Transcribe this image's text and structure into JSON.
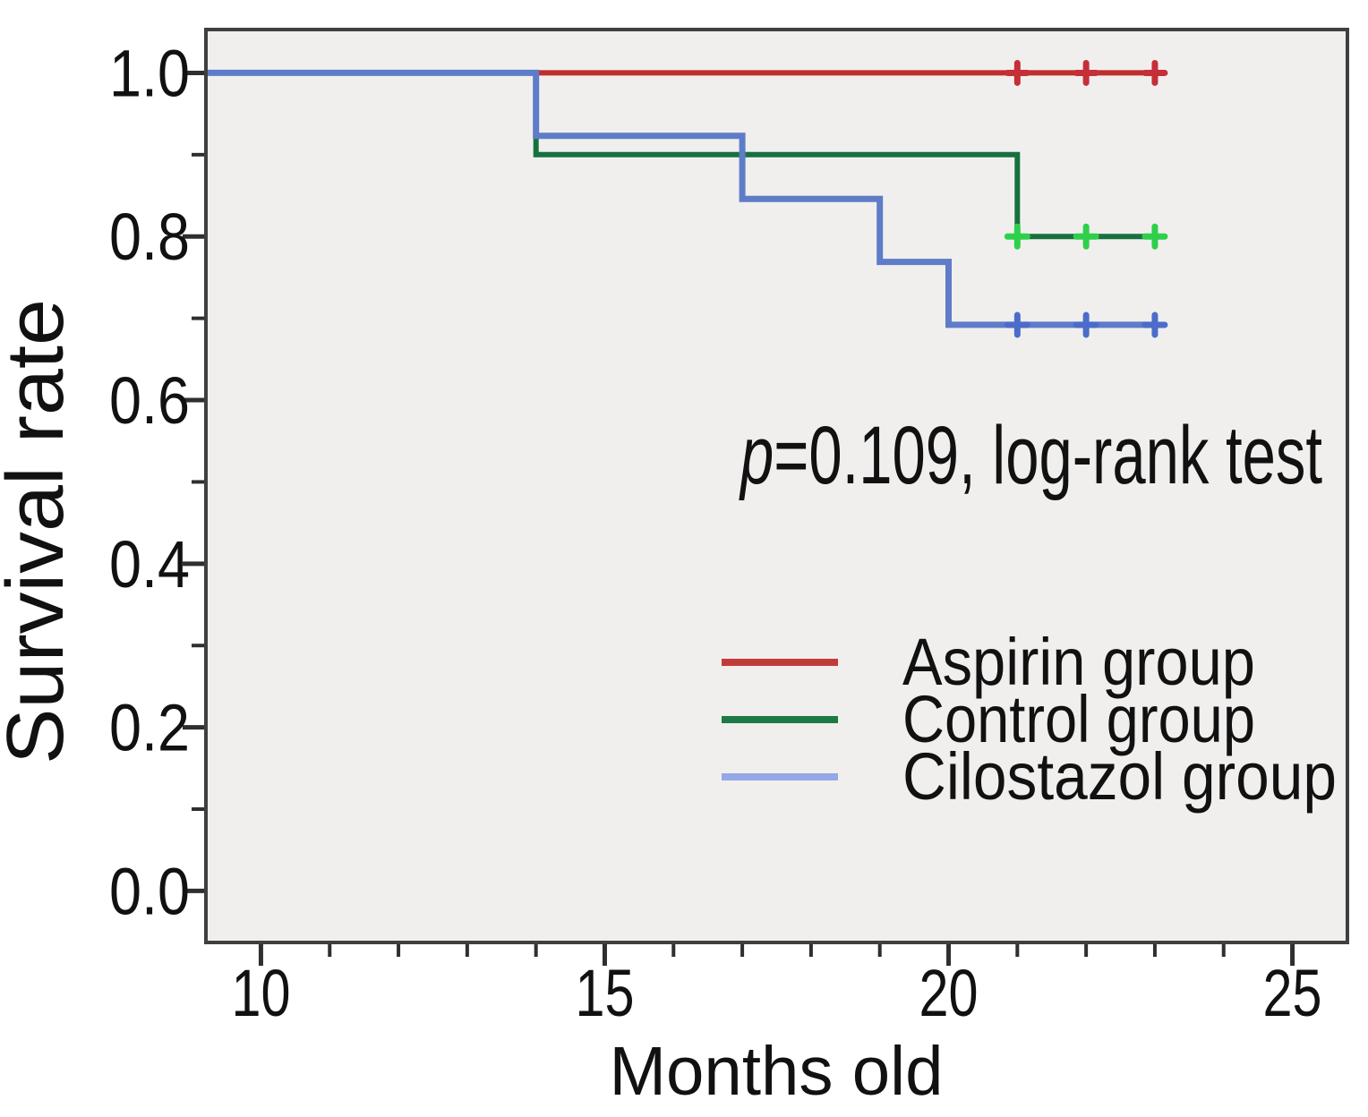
{
  "chart_data": {
    "type": "line",
    "subtype": "kaplan-meier-step",
    "title": "",
    "xlabel": "Months old",
    "ylabel": "Survival rate",
    "xlim": [
      9.2,
      25.8
    ],
    "ylim": [
      -0.063,
      1.053
    ],
    "grid": false,
    "plot_bg": "#f0efee",
    "frame_color": "#3f3f3f",
    "tick_color": "#2f2f2f",
    "x_major_ticks": [
      10,
      15,
      20,
      25
    ],
    "x_tick_labels": [
      "10",
      "15",
      "20",
      "25"
    ],
    "x_minor_ticks": [
      11,
      12,
      13,
      14,
      16,
      17,
      18,
      19,
      21,
      22,
      23,
      24
    ],
    "y_major_ticks": [
      0.0,
      0.2,
      0.4,
      0.6,
      0.8,
      1.0
    ],
    "y_tick_labels": [
      "0.0",
      "0.2",
      "0.4",
      "0.6",
      "0.8",
      "1.0"
    ],
    "y_minor_ticks": [
      0.1,
      0.3,
      0.5,
      0.7,
      0.9
    ],
    "annotation": {
      "italic": "p",
      "text": "=0.109, log-rank test"
    },
    "legend_position": "lower right",
    "series": [
      {
        "name": "Aspirin group",
        "color": "#bf2d2e",
        "marker_color": "#c52f38",
        "legend_color": "#c23b3b",
        "line_width": 6,
        "points": [
          [
            9.2,
            1.0
          ],
          [
            23,
            1.0
          ]
        ],
        "censor_marks": [
          [
            21,
            1.0
          ],
          [
            22,
            1.0
          ],
          [
            23,
            1.0
          ]
        ]
      },
      {
        "name": "Control group",
        "color": "#17713e",
        "marker_color": "#2ed04b",
        "legend_color": "#1e7a44",
        "line_width": 6,
        "points": [
          [
            9.2,
            1.0
          ],
          [
            14,
            1.0
          ],
          [
            14,
            0.9
          ],
          [
            21,
            0.9
          ],
          [
            21,
            0.8
          ],
          [
            23,
            0.8
          ]
        ],
        "censor_marks": [
          [
            21,
            0.8
          ],
          [
            22,
            0.8
          ],
          [
            23,
            0.8
          ]
        ]
      },
      {
        "name": "Cilostazol group",
        "color": "#5e7cc7",
        "marker_color": "#4c6ccb",
        "legend_color": "#95a7e6",
        "line_width": 7,
        "points": [
          [
            9.2,
            1.0
          ],
          [
            14,
            1.0
          ],
          [
            14,
            0.923
          ],
          [
            17,
            0.923
          ],
          [
            17,
            0.846
          ],
          [
            19,
            0.846
          ],
          [
            19,
            0.769
          ],
          [
            20,
            0.769
          ],
          [
            20,
            0.692
          ],
          [
            23,
            0.692
          ]
        ],
        "censor_marks": [
          [
            21,
            0.692
          ],
          [
            22,
            0.692
          ],
          [
            23,
            0.692
          ]
        ]
      }
    ]
  }
}
